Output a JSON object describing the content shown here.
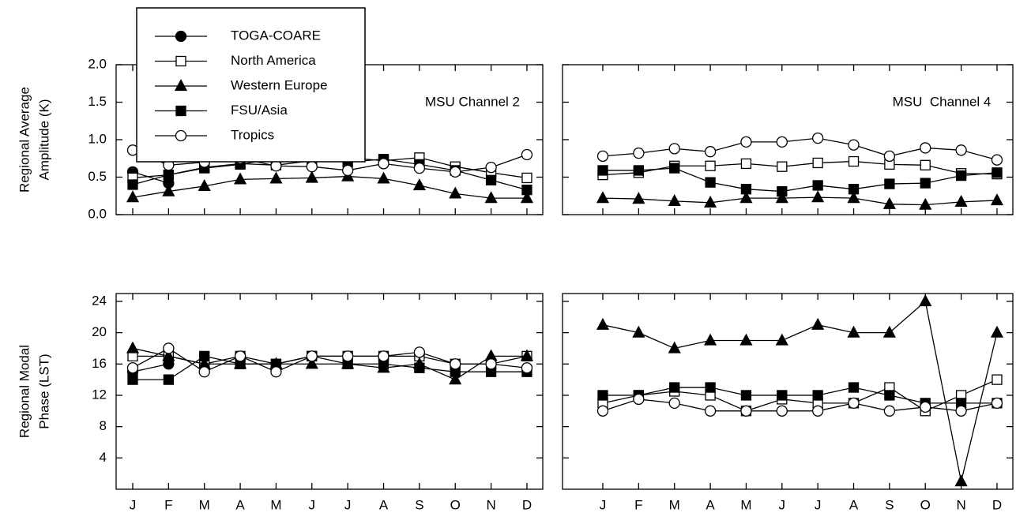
{
  "chart_data": [
    {
      "type": "line",
      "title": "MSU Channel 2",
      "ylabel": [
        "Regional Average",
        "Amplitude (K)"
      ],
      "ylim": [
        0,
        2.0
      ],
      "yticks": [
        {
          "value": 0,
          "label": "0.0"
        },
        {
          "value": 0.5,
          "label": "0.5"
        },
        {
          "value": 1,
          "label": "1.0"
        },
        {
          "value": 1.5,
          "label": "1.5"
        },
        {
          "value": 2,
          "label": "2.0"
        }
      ],
      "legend": "upper left",
      "series": [
        {
          "name": "TOGA-COARE",
          "color": "#000000",
          "marker": "circle",
          "filled": true,
          "values": [
            0.57,
            0.42,
            null,
            null,
            null,
            null,
            null,
            null,
            null,
            null,
            null,
            null
          ]
        },
        {
          "name": "North America",
          "color": "#000000",
          "marker": "square",
          "filled": false,
          "values": [
            0.49,
            0.53,
            0.63,
            0.68,
            0.66,
            0.72,
            0.76,
            0.72,
            0.76,
            0.64,
            0.56,
            0.49
          ]
        },
        {
          "name": "Western Europe",
          "color": "#000000",
          "marker": "triangle",
          "filled": true,
          "values": [
            0.23,
            0.31,
            0.38,
            0.47,
            0.48,
            0.49,
            0.51,
            0.48,
            0.39,
            0.28,
            0.22,
            0.22
          ]
        },
        {
          "name": "FSU/Asia",
          "color": "#000000",
          "marker": "square",
          "filled": true,
          "values": [
            0.4,
            0.53,
            0.62,
            0.67,
            0.75,
            0.78,
            0.7,
            0.74,
            0.67,
            0.59,
            0.46,
            0.33
          ]
        },
        {
          "name": "Tropics",
          "color": "#000000",
          "marker": "circle",
          "filled": false,
          "values": [
            0.86,
            0.66,
            0.7,
            0.75,
            0.65,
            0.64,
            0.59,
            0.68,
            0.62,
            0.57,
            0.63,
            0.8
          ]
        }
      ]
    },
    {
      "type": "line",
      "title": "MSU  Channel 4",
      "ylim": [
        0,
        2.0
      ],
      "yticks": [
        0,
        0.5,
        1,
        1.5,
        2
      ],
      "series": [
        {
          "color": "#000000",
          "marker": "square",
          "filled": false,
          "values": [
            0.53,
            0.56,
            0.65,
            0.65,
            0.68,
            0.64,
            0.69,
            0.71,
            0.67,
            0.66,
            0.55,
            0.54
          ]
        },
        {
          "color": "#000000",
          "marker": "triangle",
          "filled": true,
          "values": [
            0.22,
            0.21,
            0.18,
            0.16,
            0.22,
            0.22,
            0.23,
            0.22,
            0.14,
            0.13,
            0.17,
            0.19
          ]
        },
        {
          "color": "#000000",
          "marker": "square",
          "filled": true,
          "values": [
            0.59,
            0.59,
            0.62,
            0.43,
            0.34,
            0.31,
            0.39,
            0.34,
            0.41,
            0.42,
            0.52,
            0.56
          ]
        },
        {
          "color": "#000000",
          "marker": "circle",
          "filled": false,
          "values": [
            0.78,
            0.82,
            0.88,
            0.84,
            0.97,
            0.97,
            1.02,
            0.93,
            0.78,
            0.89,
            0.86,
            0.73
          ]
        }
      ]
    },
    {
      "type": "line",
      "ylabel": [
        "Regional Modal",
        "Phase (LST)"
      ],
      "categories": [
        "J",
        "F",
        "M",
        "A",
        "M",
        "J",
        "J",
        "A",
        "S",
        "O",
        "N",
        "D"
      ],
      "ylim": [
        0,
        25
      ],
      "yticks": [
        4,
        8,
        12,
        16,
        20,
        24
      ],
      "series": [
        {
          "color": "#000000",
          "marker": "circle",
          "filled": true,
          "values": [
            15,
            16,
            null,
            null,
            null,
            null,
            null,
            null,
            null,
            null,
            null,
            null
          ]
        },
        {
          "color": "#000000",
          "marker": "square",
          "filled": false,
          "values": [
            17,
            17,
            16,
            17,
            16,
            17,
            17,
            17,
            17,
            16,
            16,
            17
          ]
        },
        {
          "color": "#000000",
          "marker": "triangle",
          "filled": true,
          "values": [
            18,
            17,
            16,
            16,
            16,
            16,
            16,
            15.5,
            16,
            14,
            17,
            17
          ]
        },
        {
          "color": "#000000",
          "marker": "square",
          "filled": true,
          "values": [
            14,
            14,
            17,
            16,
            16,
            17,
            16,
            16,
            15.5,
            15,
            15,
            15
          ]
        },
        {
          "color": "#000000",
          "marker": "circle",
          "filled": false,
          "values": [
            15.5,
            18,
            15,
            17,
            15,
            17,
            17,
            17,
            17.5,
            16,
            16,
            15.5
          ]
        }
      ]
    },
    {
      "type": "line",
      "categories": [
        "J",
        "F",
        "M",
        "A",
        "M",
        "J",
        "J",
        "A",
        "S",
        "O",
        "N",
        "D"
      ],
      "ylim": [
        0,
        25
      ],
      "yticks": [
        4,
        8,
        12,
        16,
        20,
        24
      ],
      "series": [
        {
          "color": "#000000",
          "marker": "square",
          "filled": false,
          "values": [
            11,
            12,
            12.5,
            12,
            10,
            11.5,
            11,
            11,
            13,
            10,
            12,
            14
          ]
        },
        {
          "color": "#000000",
          "marker": "triangle",
          "filled": true,
          "values": [
            21,
            20,
            18,
            19,
            19,
            19,
            21,
            20,
            20,
            24,
            1,
            20
          ]
        },
        {
          "color": "#000000",
          "marker": "square",
          "filled": true,
          "values": [
            12,
            12,
            13,
            13,
            12,
            12,
            12,
            13,
            12,
            11,
            11,
            11
          ]
        },
        {
          "color": "#000000",
          "marker": "circle",
          "filled": false,
          "values": [
            10,
            11.5,
            11,
            10,
            10,
            10,
            10,
            11,
            10,
            10.5,
            10,
            11
          ]
        }
      ]
    }
  ]
}
